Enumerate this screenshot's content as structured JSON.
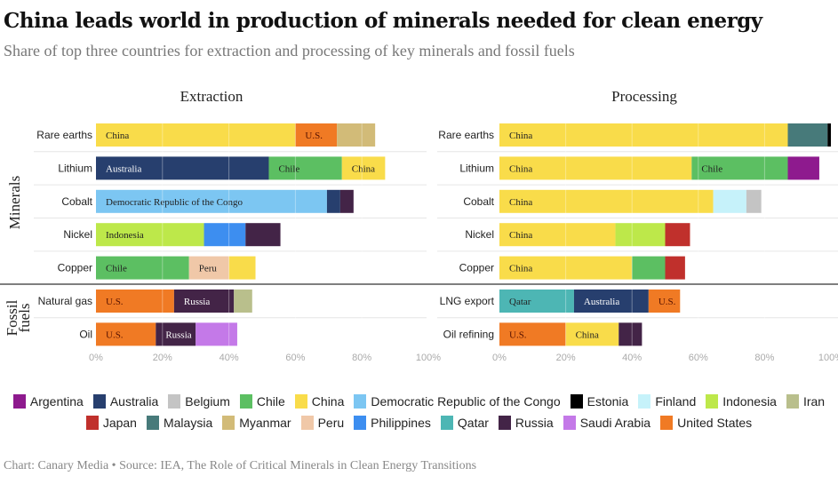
{
  "title": "China leads world in production of minerals needed for clean energy",
  "subtitle": "Share of top three countries for extraction and processing of key minerals and fossil fuels",
  "footer": "Chart: Canary Media • Source: IEA, The Role of Critical Minerals in Clean Energy Transitions",
  "colors": {
    "Argentina": "#8e1a8e",
    "Australia": "#273f6e",
    "Belgium": "#c4c4c4",
    "Chile": "#5cbf62",
    "China": "#f9dc4a",
    "Democratic Republic of the Congo": "#7cc6f2",
    "Estonia": "#000000",
    "Finland": "#c6f2fa",
    "Indonesia": "#bde84a",
    "Iran": "#b9bf8c",
    "Japan": "#c0302c",
    "Malaysia": "#477a7a",
    "Myanmar": "#d2bb78",
    "Peru": "#f0c8a8",
    "Philippines": "#3d8ef0",
    "Qatar": "#4db6b4",
    "Russia": "#432447",
    "Saudi Arabia": "#c479e8",
    "United States": "#f07a24"
  },
  "chart_data": {
    "type": "bar",
    "stacked": true,
    "orientation": "horizontal",
    "groups": [
      "Minerals",
      "Fossil fuels"
    ],
    "legend": [
      "Argentina",
      "Australia",
      "Belgium",
      "Chile",
      "China",
      "Democratic Republic of the Congo",
      "Estonia",
      "Finland",
      "Indonesia",
      "Iran",
      "Japan",
      "Malaysia",
      "Myanmar",
      "Peru",
      "Philippines",
      "Qatar",
      "Russia",
      "Saudi Arabia",
      "United States"
    ],
    "xlim": [
      0,
      100
    ],
    "xticks": [
      "0%",
      "20%",
      "40%",
      "60%",
      "80%",
      "100%"
    ],
    "panels": [
      {
        "title": "Extraction",
        "rows": [
          {
            "category": "Rare earths",
            "segments": [
              {
                "country": "China",
                "value": 60,
                "label": "China"
              },
              {
                "country": "United States",
                "value": 12.5,
                "label": "U.S."
              },
              {
                "country": "Myanmar",
                "value": 11.5,
                "label": ""
              }
            ]
          },
          {
            "category": "Lithium",
            "segments": [
              {
                "country": "Australia",
                "value": 52,
                "label": "Australia"
              },
              {
                "country": "Chile",
                "value": 22,
                "label": "Chile"
              },
              {
                "country": "China",
                "value": 13,
                "label": "China"
              }
            ]
          },
          {
            "category": "Cobalt",
            "segments": [
              {
                "country": "Democratic Republic of the Congo",
                "value": 69.5,
                "label": "Democratic Republic of the Congo"
              },
              {
                "country": "Australia",
                "value": 4,
                "label": ""
              },
              {
                "country": "Russia",
                "value": 4,
                "label": ""
              }
            ]
          },
          {
            "category": "Nickel",
            "segments": [
              {
                "country": "Indonesia",
                "value": 32.5,
                "label": "Indonesia"
              },
              {
                "country": "Philippines",
                "value": 12.5,
                "label": ""
              },
              {
                "country": "Russia",
                "value": 10.5,
                "label": ""
              }
            ]
          },
          {
            "category": "Copper",
            "segments": [
              {
                "country": "Chile",
                "value": 28,
                "label": "Chile"
              },
              {
                "country": "Peru",
                "value": 12,
                "label": "Peru"
              },
              {
                "country": "China",
                "value": 8,
                "label": ""
              }
            ]
          },
          {
            "category": "Natural gas",
            "segments": [
              {
                "country": "United States",
                "value": 23.5,
                "label": "U.S."
              },
              {
                "country": "Russia",
                "value": 18,
                "label": "Russia"
              },
              {
                "country": "Iran",
                "value": 5.5,
                "label": ""
              }
            ]
          },
          {
            "category": "Oil",
            "segments": [
              {
                "country": "United States",
                "value": 18,
                "label": "U.S."
              },
              {
                "country": "Russia",
                "value": 12,
                "label": "Russia"
              },
              {
                "country": "Saudi Arabia",
                "value": 12.5,
                "label": ""
              }
            ]
          }
        ]
      },
      {
        "title": "Processing",
        "rows": [
          {
            "category": "Rare earths",
            "segments": [
              {
                "country": "China",
                "value": 87,
                "label": "China"
              },
              {
                "country": "Malaysia",
                "value": 12,
                "label": ""
              },
              {
                "country": "Estonia",
                "value": 1,
                "label": ""
              }
            ]
          },
          {
            "category": "Lithium",
            "segments": [
              {
                "country": "China",
                "value": 58,
                "label": "China"
              },
              {
                "country": "Chile",
                "value": 29,
                "label": "Chile"
              },
              {
                "country": "Argentina",
                "value": 9.5,
                "label": ""
              }
            ]
          },
          {
            "category": "Cobalt",
            "segments": [
              {
                "country": "China",
                "value": 64.5,
                "label": "China"
              },
              {
                "country": "Finland",
                "value": 10,
                "label": ""
              },
              {
                "country": "Belgium",
                "value": 4.5,
                "label": ""
              }
            ]
          },
          {
            "category": "Nickel",
            "segments": [
              {
                "country": "China",
                "value": 35,
                "label": "China"
              },
              {
                "country": "Indonesia",
                "value": 15,
                "label": ""
              },
              {
                "country": "Japan",
                "value": 7.5,
                "label": ""
              }
            ]
          },
          {
            "category": "Copper",
            "segments": [
              {
                "country": "China",
                "value": 40,
                "label": "China"
              },
              {
                "country": "Chile",
                "value": 10,
                "label": ""
              },
              {
                "country": "Japan",
                "value": 6,
                "label": ""
              }
            ]
          },
          {
            "category": "LNG export",
            "segments": [
              {
                "country": "Qatar",
                "value": 22.5,
                "label": "Qatar"
              },
              {
                "country": "Australia",
                "value": 22.5,
                "label": "Australia"
              },
              {
                "country": "United States",
                "value": 9.5,
                "label": "U.S."
              }
            ]
          },
          {
            "category": "Oil refining",
            "segments": [
              {
                "country": "United States",
                "value": 20,
                "label": "U.S."
              },
              {
                "country": "China",
                "value": 16,
                "label": "China"
              },
              {
                "country": "Russia",
                "value": 7,
                "label": ""
              }
            ]
          }
        ]
      }
    ]
  }
}
